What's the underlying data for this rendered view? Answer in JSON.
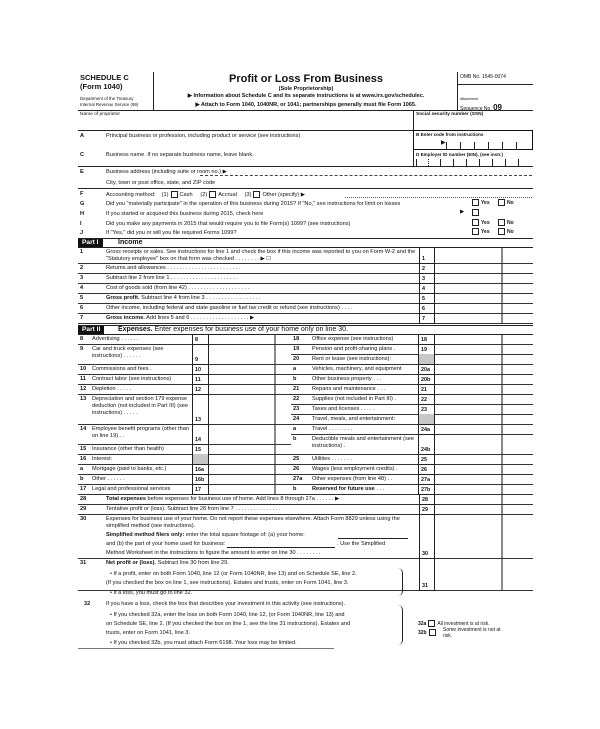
{
  "header": {
    "schedule": "SCHEDULE C",
    "form": "(Form 1040)",
    "dept": "Department of the Treasury",
    "irs": "Internal Revenue Service (99)",
    "title": "Profit or Loss From Business",
    "subtitle": "(Sole Proprietorship)",
    "info_line": "▶ Information about Schedule C and its separate instructions is at www.irs.gov/schedulec.",
    "attach_line": "▶ Attach to Form 1040, 1040NR, or 1041; partnerships generally must file Form 1065.",
    "omb": "OMB No. 1545-0074",
    "attachment": "Attachment",
    "seq_label": "Sequence No.",
    "seq_no": "09"
  },
  "top": {
    "name_label": "Name of proprietor",
    "ssn_label": "Social security number (SSN)",
    "A": {
      "letter": "A",
      "label": "Principal business or profession, including product or service (see instructions)"
    },
    "B": {
      "letter": "B",
      "label": "Enter code from instructions",
      "arrow": "▶"
    },
    "C": {
      "letter": "C",
      "label": "Business name. If no separate business name, leave blank."
    },
    "D": {
      "letter": "D",
      "label": "Employer ID number (EIN), (see instr.)"
    },
    "E": {
      "letter": "E",
      "label": "Business address (including suite or room no.) ▶",
      "city": "City, town or post office, state, and ZIP code"
    },
    "F": {
      "letter": "F",
      "label": "Accounting method:",
      "opt1_num": "(1)",
      "opt1": "Cash",
      "opt2_num": "(2)",
      "opt2": "Accrual",
      "opt3_num": "(3)",
      "opt3": "Other (specify) ▶"
    },
    "G": {
      "letter": "G",
      "label": "Did you \"materially participate\" in the operation of this business during 2015? If \"No,\" see instructions for limit on losses"
    },
    "H": {
      "letter": "H",
      "label": "If you started or acquired this business during 2015, check here",
      "arrow": "▶"
    },
    "I": {
      "letter": "I",
      "label": "Did you make any payments in 2015 that would require you to file Form(s) 1099? (see instructions)"
    },
    "J": {
      "letter": "J",
      "label": "If \"Yes,\" did you or will you file required Forms 1099?"
    },
    "yes": "Yes",
    "no": "No"
  },
  "part1": {
    "tag": "Part I",
    "title": "Income",
    "lines": [
      {
        "num": "1",
        "bold": "",
        "text": "Gross receipts or sales. See instructions for line 1 and check the box if this income was reported to you on Form W-2 and the \"Statutory employee\" box on that form was checked . . . . . . . . ▶ ☐",
        "box": "1",
        "h": 16
      },
      {
        "num": "2",
        "bold": "",
        "text": "Returns and allowances . . . . . . . . . . . . . . . . . . . . . . . .",
        "box": "2",
        "h": 10
      },
      {
        "num": "3",
        "bold": "",
        "text": "Subtract line 2 from line 1 . . . . . . . . . . . . . . . . . . . . . .",
        "box": "3",
        "h": 10
      },
      {
        "num": "4",
        "bold": "",
        "text": "Cost of goods sold (from line 42) . . . . . . . . . . . . . . . . . . . .",
        "box": "4",
        "h": 10
      },
      {
        "num": "5",
        "bold": "Gross profit.",
        "text": " Subtract line 4 from line 3 . . . . . . . . . . . . . . . . . .",
        "box": "5",
        "h": 10
      },
      {
        "num": "6",
        "bold": "",
        "text": "Other income, including federal and state gasoline or fuel tax credit or refund (see instructions) . . . .",
        "box": "6",
        "h": 10
      },
      {
        "num": "7",
        "bold": "Gross income.",
        "text": " Add lines 5 and 6 . . . . . . . . . . . . . . . . . . . ▶",
        "box": "7",
        "h": 10
      }
    ]
  },
  "part2": {
    "tag": "Part II",
    "title_bold": "Expenses.",
    "title_rest": " Enter expenses for business use of your home only on line 30.",
    "left": [
      {
        "num": "8",
        "bold": "",
        "text": "Advertising . . . . . .",
        "box": "8",
        "h": 10
      },
      {
        "num": "9",
        "bold": "",
        "text": "Car and truck expenses (see instructions) . . . . . .",
        "box": "9",
        "h": 20
      },
      {
        "num": "10",
        "bold": "",
        "text": "Commissions and fees .",
        "box": "10",
        "h": 10
      },
      {
        "num": "11",
        "bold": "",
        "text": "Contract labor (see instructions)",
        "box": "11",
        "h": 10
      },
      {
        "num": "12",
        "bold": "",
        "text": "Depletion . . . . .",
        "box": "12",
        "h": 10
      },
      {
        "num": "13",
        "bold": "",
        "text": "Depreciation and section 179 expense deduction (not included in Part III) (see instructions) . . . . .",
        "box": "13",
        "h": 30
      },
      {
        "num": "14",
        "bold": "",
        "text": "Employee benefit programs (other than on line 19) . .",
        "box": "14",
        "h": 20
      },
      {
        "num": "15",
        "bold": "",
        "text": "Insurance (other than health)",
        "box": "15",
        "h": 10
      },
      {
        "num": "16",
        "bold": "",
        "text": "Interest:",
        "box": "",
        "h": 10,
        "shaded": true
      },
      {
        "num": "a",
        "bold": "",
        "text": "Mortgage (paid to banks, etc.)",
        "box": "16a",
        "h": 10
      },
      {
        "num": "b",
        "bold": "",
        "text": "Other . . . . . .",
        "box": "16b",
        "h": 10
      },
      {
        "num": "17",
        "bold": "",
        "text": "Legal and professional services",
        "box": "17",
        "h": 10
      }
    ],
    "right": [
      {
        "num": "18",
        "bold": "",
        "text": "Office expense (see instructions)",
        "box": "18",
        "h": 10
      },
      {
        "num": "19",
        "bold": "",
        "text": "Pension and profit-sharing plans .",
        "box": "19",
        "h": 10
      },
      {
        "num": "20",
        "bold": "",
        "text": "Rent or lease (see instructions):",
        "box": "",
        "h": 10,
        "shaded": true
      },
      {
        "num": "a",
        "bold": "",
        "text": "Vehicles, machinery, and equipment",
        "box": "20a",
        "h": 10
      },
      {
        "num": "b",
        "bold": "",
        "text": "Other business property . . .",
        "box": "20b",
        "h": 10
      },
      {
        "num": "21",
        "bold": "",
        "text": "Repairs and maintenance . . .",
        "box": "21",
        "h": 10
      },
      {
        "num": "22",
        "bold": "",
        "text": "Supplies (not included in Part III) .",
        "box": "22",
        "h": 10
      },
      {
        "num": "23",
        "bold": "",
        "text": "Taxes and licenses . . . . .",
        "box": "23",
        "h": 10
      },
      {
        "num": "24",
        "bold": "",
        "text": "Travel, meals, and entertainment:",
        "box": "",
        "h": 10,
        "shaded": true
      },
      {
        "num": "a",
        "bold": "",
        "text": "Travel . . . . . . . .",
        "box": "24a",
        "h": 10
      },
      {
        "num": "b",
        "bold": "",
        "text": "Deductible meals and entertainment (see instructions) .",
        "box": "24b",
        "h": 20
      },
      {
        "num": "25",
        "bold": "",
        "text": "Utilities . . . . . . .",
        "box": "25",
        "h": 10
      },
      {
        "num": "26",
        "bold": "",
        "text": "Wages (less employment credits) .",
        "box": "26",
        "h": 10
      },
      {
        "num": "27a",
        "bold": "",
        "text": "Other expenses (from line 48) . .",
        "box": "27a",
        "h": 10
      },
      {
        "num": "b",
        "bold": "Reserved for future use",
        "text": " . . .",
        "box": "27b",
        "h": 10
      }
    ],
    "bottom": [
      {
        "num": "28",
        "bold": "Total expenses",
        "text": " before expenses for business use of home. Add lines 8 through 27a . . . . . . ▶",
        "box": "28",
        "h": 10
      },
      {
        "num": "29",
        "bold": "",
        "text": "Tentative profit or (loss). Subtract line 28 from line 7 . . . . . . . . . . . . . . .",
        "box": "29",
        "h": 10
      },
      {
        "num": "30",
        "bold": "",
        "text": "Expenses for business use of your home. Do not report these expenses elsewhere. Attach Form 8829 unless using the simplified method (see instructions).",
        "box": "30",
        "h": 44
      },
      {
        "num": "31",
        "bold": "Net profit or (loss).",
        "text": " Subtract line 30 from line 29.",
        "box": "31",
        "h": 32
      }
    ],
    "line30_simplified_bold": "Simplified method filers only:",
    "line30_simplified": " enter the total square footage of: (a) your home:",
    "line30_b": "and (b) the part of your home used for business:",
    "line30_use": ". Use the Simplified",
    "line30_ws": "Method Worksheet in the instructions to figure the amount to enter on line 30 . . . . . . . .",
    "line31_profit": "• If a profit, enter on both Form 1040, line 12 (or Form 1040NR, line 13) and on Schedule SE, line 2.",
    "line31_checked": "(If you checked the box on line 1, see instructions). Estates and trusts, enter on Form 1041, line 3.",
    "line31_loss": "• If a loss, you must go to line 32.",
    "line32_num": "32",
    "line32": "If you have a loss, check the box that describes your investment in this activity (see instructions).",
    "line32_a1": "• If you checked 32a, enter the loss on both Form 1040, line 12, (or Form 1040NR, line 13) and",
    "line32_a2": "on Schedule SE, line 2. (If you checked the box on line 1, see the line 31 instructions). Estates and",
    "line32_a3": "trusts, enter on Form 1041, line 3.",
    "line32_b": "• If you checked 32b, you must attach Form 6198. Your loss may be limited.",
    "opt32a": "32a",
    "opt32a_label": "All investment is at risk.",
    "opt32b": "32b",
    "opt32b_label": "Some investment is not at risk."
  }
}
